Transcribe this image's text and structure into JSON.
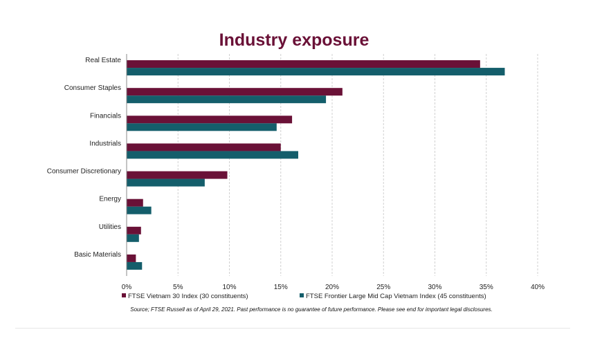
{
  "chart_data": {
    "type": "bar",
    "orientation": "horizontal",
    "title": "Industry exposure",
    "categories": [
      "Real Estate",
      "Consumer Staples",
      "Financials",
      "Industrials",
      "Consumer Discretionary",
      "Energy",
      "Utilities",
      "Basic Materials"
    ],
    "series": [
      {
        "name": "FTSE Vietnam 30 Index (30 constituents)",
        "color": "#6a1137",
        "values": [
          34.4,
          21.0,
          16.1,
          15.0,
          9.8,
          1.6,
          1.4,
          0.9
        ]
      },
      {
        "name": "FTSE Frontier Large Mid Cap Vietnam Index (45 constituents)",
        "color": "#145e6b",
        "values": [
          36.8,
          19.4,
          14.6,
          16.7,
          7.6,
          2.4,
          1.2,
          1.5
        ]
      }
    ],
    "xlim": [
      0,
      40
    ],
    "x_ticks": [
      "0%",
      "5%",
      "10%",
      "15%",
      "20%",
      "25%",
      "30%",
      "35%",
      "40%"
    ],
    "x_tick_values": [
      0,
      5,
      10,
      15,
      20,
      25,
      30,
      35,
      40
    ],
    "grid": "vertical-dashed",
    "legend_position": "bottom"
  },
  "source_note": "Source; FTSE Russell as of April 29, 2021. Past performance is no guarantee of future performance. Please see end for important legal disclosures."
}
